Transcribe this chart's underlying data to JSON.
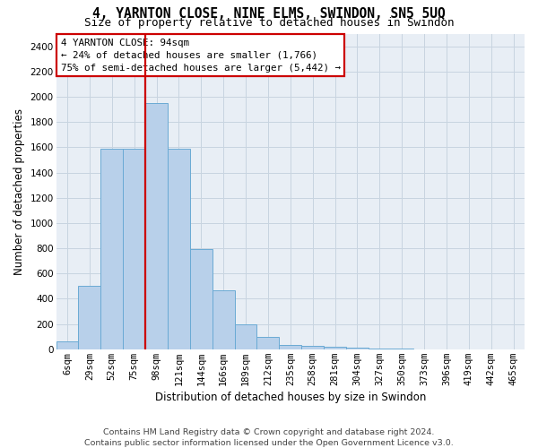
{
  "title": "4, YARNTON CLOSE, NINE ELMS, SWINDON, SN5 5UQ",
  "subtitle": "Size of property relative to detached houses in Swindon",
  "xlabel": "Distribution of detached houses by size in Swindon",
  "ylabel": "Number of detached properties",
  "footer_line1": "Contains HM Land Registry data © Crown copyright and database right 2024.",
  "footer_line2": "Contains public sector information licensed under the Open Government Licence v3.0.",
  "categories": [
    "6sqm",
    "29sqm",
    "52sqm",
    "75sqm",
    "98sqm",
    "121sqm",
    "144sqm",
    "166sqm",
    "189sqm",
    "212sqm",
    "235sqm",
    "258sqm",
    "281sqm",
    "304sqm",
    "327sqm",
    "350sqm",
    "373sqm",
    "396sqm",
    "419sqm",
    "442sqm",
    "465sqm"
  ],
  "values": [
    60,
    500,
    1590,
    1590,
    1950,
    1590,
    790,
    470,
    200,
    95,
    35,
    30,
    22,
    12,
    5,
    2,
    1,
    0,
    0,
    0,
    0
  ],
  "bar_color": "#b8d0ea",
  "bar_edge_color": "#6aaad4",
  "red_line_x": 4,
  "red_line_color": "#cc0000",
  "annotation_line1": "4 YARNTON CLOSE: 94sqm",
  "annotation_line2": "← 24% of detached houses are smaller (1,766)",
  "annotation_line3": "75% of semi-detached houses are larger (5,442) →",
  "annotation_box_edgecolor": "#cc0000",
  "ylim_max": 2500,
  "yticks": [
    0,
    200,
    400,
    600,
    800,
    1000,
    1200,
    1400,
    1600,
    1800,
    2000,
    2200,
    2400
  ],
  "grid_color": "#c8d4e0",
  "bg_color": "#e8eef5",
  "title_fontsize": 10.5,
  "subtitle_fontsize": 9,
  "axis_label_fontsize": 8.5,
  "tick_fontsize": 7.5,
  "footer_fontsize": 6.8,
  "ann_fontsize": 7.8
}
